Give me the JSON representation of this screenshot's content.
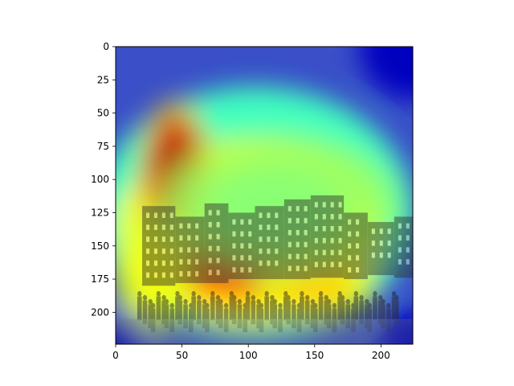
{
  "chart_data": {
    "type": "heatmap",
    "title": "",
    "xlabel": "",
    "ylabel": "",
    "image_size": [
      224,
      224
    ],
    "xlim": [
      0,
      224
    ],
    "ylim": [
      224,
      0
    ],
    "x_ticks": [
      0,
      50,
      100,
      150,
      200
    ],
    "y_ticks": [
      0,
      25,
      50,
      75,
      100,
      125,
      150,
      175,
      200
    ],
    "x_tick_labels": [
      "0",
      "50",
      "100",
      "150",
      "200"
    ],
    "y_tick_labels": [
      "0",
      "25",
      "50",
      "75",
      "100",
      "125",
      "150",
      "175",
      "200"
    ],
    "grid": false,
    "colormap": "jet",
    "colormap_stops": [
      "#00007f",
      "#0000ff",
      "#00ffff",
      "#ffff00",
      "#ff0000",
      "#7f0000"
    ],
    "overlay_base": "grayscale engraving of a row of buildings with a crowd in the foreground",
    "activation_peaks": [
      {
        "x": 45,
        "y": 100,
        "intensity": 1.0,
        "sx": 18,
        "sy": 38
      },
      {
        "x": 100,
        "y": 165,
        "intensity": 0.85,
        "sx": 55,
        "sy": 20
      },
      {
        "x": 150,
        "y": 180,
        "intensity": 0.65,
        "sx": 30,
        "sy": 18
      },
      {
        "x": 28,
        "y": 170,
        "intensity": 0.6,
        "sx": 20,
        "sy": 30
      },
      {
        "x": 120,
        "y": 120,
        "intensity": 0.5,
        "sx": 60,
        "sy": 35
      }
    ]
  }
}
